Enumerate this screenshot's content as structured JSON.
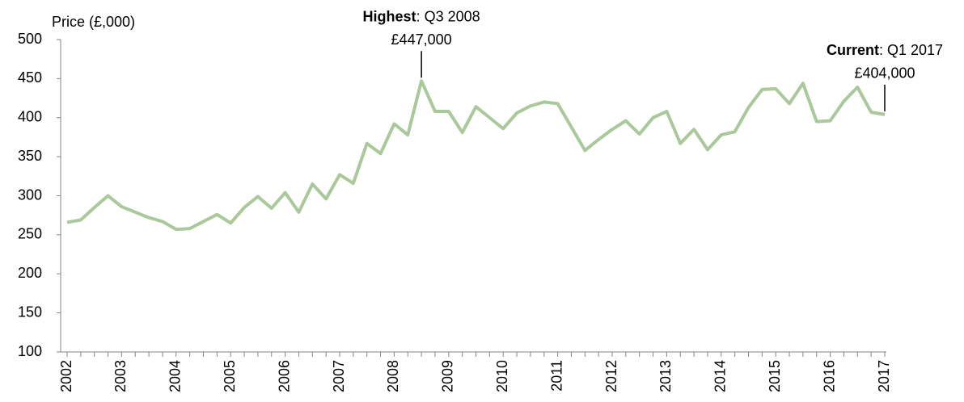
{
  "chart_data": {
    "type": "line",
    "y_label": "Price (£,000)",
    "categories": [
      "2002",
      null,
      null,
      null,
      "2003",
      null,
      null,
      null,
      "2004",
      null,
      null,
      null,
      "2005",
      null,
      null,
      null,
      "2006",
      null,
      null,
      null,
      "2007",
      null,
      null,
      null,
      "2008",
      null,
      null,
      null,
      "2009",
      null,
      null,
      null,
      "2010",
      null,
      null,
      null,
      "2011",
      null,
      null,
      null,
      "2012",
      null,
      null,
      null,
      "2013",
      null,
      null,
      null,
      "2014",
      null,
      null,
      null,
      "2015",
      null,
      null,
      null,
      "2016",
      null,
      null,
      null,
      "2017"
    ],
    "values": [
      266,
      269,
      285,
      300,
      286,
      279,
      272,
      267,
      257,
      258,
      267,
      276,
      265,
      285,
      299,
      284,
      304,
      279,
      315,
      296,
      327,
      316,
      367,
      354,
      392,
      378,
      447,
      408,
      408,
      381,
      414,
      400,
      386,
      406,
      415,
      420,
      418,
      388,
      358,
      372,
      385,
      396,
      379,
      400,
      408,
      367,
      385,
      359,
      378,
      382,
      413,
      436,
      437,
      418,
      444,
      395,
      396,
      421,
      439,
      407,
      404
    ],
    "value_labels": [
      null,
      null,
      null,
      null,
      null,
      null,
      null,
      null,
      null,
      null,
      null,
      null,
      null,
      null,
      null,
      null,
      null,
      null,
      null,
      null,
      null,
      null,
      null,
      null,
      null,
      null,
      "£447,000",
      null,
      null,
      null,
      null,
      null,
      null,
      null,
      null,
      null,
      null,
      null,
      null,
      null,
      null,
      null,
      null,
      null,
      null,
      null,
      null,
      null,
      null,
      null,
      null,
      null,
      null,
      null,
      null,
      null,
      null,
      null,
      null,
      null,
      "£404,000"
    ],
    "annotations": [
      {
        "title": "Highest",
        "text": ": Q3 2008"
      },
      {
        "title": "Current",
        "text": ": Q1 2017"
      }
    ],
    "color": "#a9c99a",
    "ylim": [
      100,
      500
    ],
    "yticks": [
      100,
      150,
      200,
      250,
      300,
      350,
      400,
      450,
      500
    ],
    "grid": false
  }
}
